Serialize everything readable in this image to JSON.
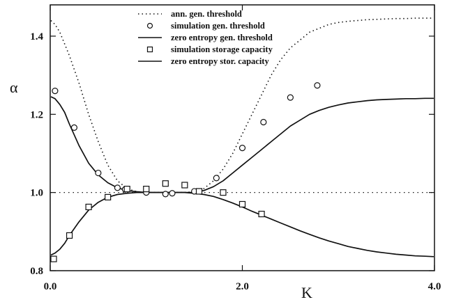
{
  "chart_data": {
    "type": "scatter",
    "title": "",
    "xlabel": "K",
    "ylabel": "α",
    "xlim": [
      0.0,
      4.0
    ],
    "ylim": [
      0.8,
      1.48
    ],
    "xticks": [
      0.0,
      2.0,
      4.0
    ],
    "xtick_labels": [
      "0.0",
      "2.0",
      "4.0"
    ],
    "yticks": [
      0.8,
      1.0,
      1.2,
      1.4
    ],
    "ytick_labels": [
      "0.8",
      "1.0",
      "1.2",
      "1.4"
    ],
    "grid": false,
    "legend_position": "top-center",
    "reference_line": {
      "y": 1.0,
      "style": "dotted"
    },
    "series": [
      {
        "name": "ann. gen. threshold",
        "kind": "line",
        "style": "dotted",
        "color": "#111111",
        "x": [
          0.0,
          0.05,
          0.1,
          0.15,
          0.2,
          0.3,
          0.4,
          0.5,
          0.6,
          0.7,
          0.8,
          0.9,
          1.0,
          1.1,
          1.2,
          1.3,
          1.4,
          1.5,
          1.6,
          1.7,
          1.8,
          1.9,
          2.0,
          2.1,
          2.2,
          2.3,
          2.4,
          2.5,
          2.6,
          2.7,
          2.8,
          2.9,
          3.0,
          3.1,
          3.2,
          3.3,
          3.4,
          3.5,
          3.6,
          3.7,
          3.8,
          3.9,
          4.0
        ],
        "y": [
          1.44,
          1.43,
          1.41,
          1.38,
          1.35,
          1.28,
          1.2,
          1.13,
          1.07,
          1.03,
          1.01,
          1.002,
          1.0,
          1.0,
          1.0,
          1.0,
          1.0,
          1.002,
          1.01,
          1.03,
          1.06,
          1.1,
          1.15,
          1.2,
          1.25,
          1.3,
          1.34,
          1.37,
          1.39,
          1.41,
          1.42,
          1.43,
          1.435,
          1.438,
          1.44,
          1.442,
          1.443,
          1.444,
          1.445,
          1.445,
          1.446,
          1.446,
          1.446
        ]
      },
      {
        "name": "simulation gen. threshold",
        "kind": "scatter",
        "marker": "circle",
        "x": [
          0.05,
          0.25,
          0.5,
          0.7,
          0.78,
          1.0,
          1.2,
          1.27,
          1.5,
          1.73,
          2.0,
          2.22,
          2.5,
          2.78
        ],
        "y": [
          1.26,
          1.166,
          1.05,
          1.012,
          1.008,
          1.0,
          0.996,
          0.998,
          1.003,
          1.037,
          1.114,
          1.18,
          1.243,
          1.274
        ]
      },
      {
        "name": "zero entropy gen. threshold",
        "kind": "line",
        "style": "solid",
        "color": "#111111",
        "x": [
          0.0,
          0.05,
          0.1,
          0.15,
          0.2,
          0.3,
          0.4,
          0.5,
          0.6,
          0.7,
          0.8,
          0.9,
          1.0,
          1.1,
          1.2,
          1.3,
          1.4,
          1.5,
          1.6,
          1.7,
          1.8,
          1.9,
          2.0,
          2.1,
          2.2,
          2.3,
          2.4,
          2.5,
          2.6,
          2.7,
          2.8,
          2.9,
          3.0,
          3.1,
          3.2,
          3.3,
          3.4,
          3.5,
          3.6,
          3.7,
          3.8,
          3.9,
          4.0
        ],
        "y": [
          1.245,
          1.24,
          1.225,
          1.205,
          1.175,
          1.12,
          1.075,
          1.045,
          1.025,
          1.012,
          1.005,
          1.002,
          1.0,
          1.0,
          1.0,
          1.0,
          1.0,
          1.0,
          1.005,
          1.015,
          1.03,
          1.05,
          1.07,
          1.09,
          1.11,
          1.13,
          1.15,
          1.17,
          1.185,
          1.2,
          1.21,
          1.218,
          1.224,
          1.229,
          1.232,
          1.235,
          1.237,
          1.238,
          1.239,
          1.24,
          1.24,
          1.241,
          1.241
        ]
      },
      {
        "name": "simulation storage capacity",
        "kind": "scatter",
        "marker": "square",
        "x": [
          0.0,
          0.2,
          0.4,
          0.6,
          0.8,
          1.0,
          1.2,
          1.4,
          1.55,
          1.8,
          2.0,
          2.2
        ],
        "y": [
          0.83,
          0.89,
          0.963,
          0.988,
          1.009,
          1.009,
          1.023,
          1.019,
          1.003,
          1.0,
          0.97,
          0.945
        ]
      },
      {
        "name": "zero entropy stor. capacity",
        "kind": "line",
        "style": "solid",
        "color": "#111111",
        "x": [
          0.0,
          0.05,
          0.1,
          0.15,
          0.2,
          0.3,
          0.4,
          0.5,
          0.6,
          0.7,
          0.8,
          0.9,
          1.0,
          1.1,
          1.2,
          1.3,
          1.4,
          1.5,
          1.6,
          1.7,
          1.8,
          1.9,
          2.0,
          2.1,
          2.2,
          2.3,
          2.4,
          2.5,
          2.6,
          2.7,
          2.8,
          2.9,
          3.0,
          3.1,
          3.2,
          3.3,
          3.4,
          3.5,
          3.6,
          3.7,
          3.8,
          3.9,
          4.0
        ],
        "y": [
          0.84,
          0.845,
          0.855,
          0.87,
          0.89,
          0.925,
          0.955,
          0.975,
          0.988,
          0.995,
          0.998,
          1.0,
          1.0,
          1.0,
          1.0,
          1.0,
          1.0,
          0.998,
          0.995,
          0.99,
          0.982,
          0.973,
          0.963,
          0.952,
          0.942,
          0.932,
          0.922,
          0.912,
          0.902,
          0.893,
          0.884,
          0.876,
          0.869,
          0.862,
          0.857,
          0.852,
          0.848,
          0.845,
          0.842,
          0.84,
          0.838,
          0.837,
          0.836
        ]
      }
    ]
  }
}
